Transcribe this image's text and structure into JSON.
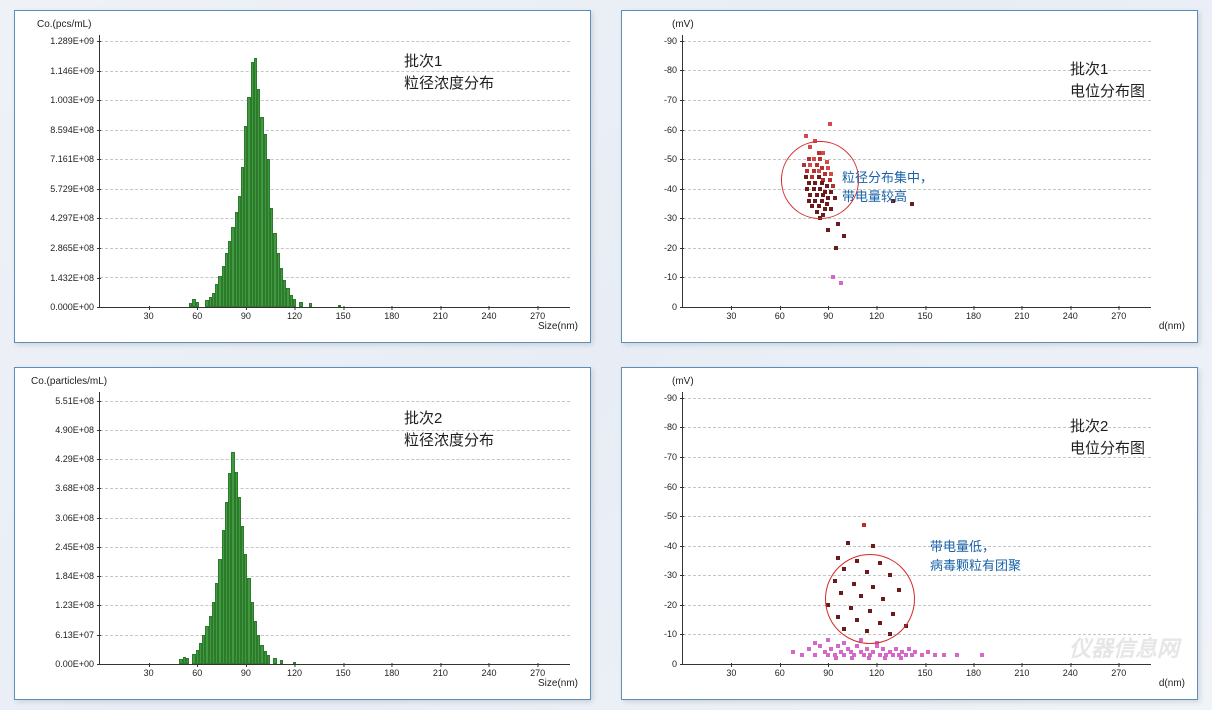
{
  "layout": {
    "panel_border_color": "#5a8fbd",
    "bg_gradient": [
      "#eef2f7",
      "#e8edf5",
      "#f0f3f8"
    ]
  },
  "chart_tl": {
    "type": "bar",
    "y_axis_label": "Co.(pcs/mL)",
    "x_axis_label": "Size(nm)",
    "title_line1": "批次1",
    "title_line2": "粒径浓度分布",
    "title_fontsize": 15,
    "bar_color": "#3f9a3f",
    "bar_border": "#2d7a2d",
    "grid_color": "#c5c5c5",
    "axis_color": "#333333",
    "xlim": [
      0,
      290
    ],
    "ylim": [
      0,
      1320000000.0
    ],
    "xticks": [
      30,
      60,
      90,
      120,
      150,
      180,
      210,
      240,
      270
    ],
    "yticks": [
      {
        "v": 0,
        "l": "0.000E+00"
      },
      {
        "v": 143200000.0,
        "l": "1.432E+08"
      },
      {
        "v": 286500000.0,
        "l": "2.865E+08"
      },
      {
        "v": 429700000.0,
        "l": "4.297E+08"
      },
      {
        "v": 572900000.0,
        "l": "5.729E+08"
      },
      {
        "v": 716100000.0,
        "l": "7.161E+08"
      },
      {
        "v": 859400000.0,
        "l": "8.594E+08"
      },
      {
        "v": 1003000000.0,
        "l": "1.003E+09"
      },
      {
        "v": 1146000000.0,
        "l": "1.146E+09"
      },
      {
        "v": 1289000000.0,
        "l": "1.289E+09"
      }
    ],
    "bar_width_nm": 2.0,
    "bars": [
      {
        "x": 56,
        "y": 20000000.0
      },
      {
        "x": 58,
        "y": 40000000.0
      },
      {
        "x": 60,
        "y": 25000000.0
      },
      {
        "x": 66,
        "y": 35000000.0
      },
      {
        "x": 68,
        "y": 50000000.0
      },
      {
        "x": 70,
        "y": 70000000.0
      },
      {
        "x": 72,
        "y": 110000000.0
      },
      {
        "x": 74,
        "y": 150000000.0
      },
      {
        "x": 76,
        "y": 200000000.0
      },
      {
        "x": 78,
        "y": 260000000.0
      },
      {
        "x": 80,
        "y": 320000000.0
      },
      {
        "x": 82,
        "y": 390000000.0
      },
      {
        "x": 84,
        "y": 460000000.0
      },
      {
        "x": 86,
        "y": 540000000.0
      },
      {
        "x": 88,
        "y": 680000000.0
      },
      {
        "x": 90,
        "y": 880000000.0
      },
      {
        "x": 92,
        "y": 1020000000.0
      },
      {
        "x": 94,
        "y": 1190000000.0
      },
      {
        "x": 96,
        "y": 1210000000.0
      },
      {
        "x": 98,
        "y": 1060000000.0
      },
      {
        "x": 100,
        "y": 920000000.0
      },
      {
        "x": 102,
        "y": 840000000.0
      },
      {
        "x": 104,
        "y": 720000000.0
      },
      {
        "x": 106,
        "y": 480000000.0
      },
      {
        "x": 108,
        "y": 360000000.0
      },
      {
        "x": 110,
        "y": 260000000.0
      },
      {
        "x": 112,
        "y": 190000000.0
      },
      {
        "x": 114,
        "y": 130000000.0
      },
      {
        "x": 116,
        "y": 90000000.0
      },
      {
        "x": 118,
        "y": 60000000.0
      },
      {
        "x": 120,
        "y": 40000000.0
      },
      {
        "x": 124,
        "y": 25000000.0
      },
      {
        "x": 130,
        "y": 18000000.0
      },
      {
        "x": 148,
        "y": 12000000.0
      }
    ]
  },
  "chart_tr": {
    "type": "scatter",
    "y_axis_label": "(mV)",
    "x_axis_label": "d(nm)",
    "title_line1": "批次1",
    "title_line2": "电位分布图",
    "annot_line1": "粒径分布集中，",
    "annot_line2": "带电量较高",
    "annot_color": "#1862a8",
    "axis_color": "#333333",
    "grid_color": "#c5c5c5",
    "xlim": [
      0,
      290
    ],
    "ylim": [
      0,
      92
    ],
    "xticks": [
      30,
      60,
      90,
      120,
      150,
      180,
      210,
      240,
      270
    ],
    "yticks": [
      {
        "v": 0,
        "l": "0"
      },
      {
        "v": 10,
        "l": "-10"
      },
      {
        "v": 20,
        "l": "-20"
      },
      {
        "v": 30,
        "l": "-30"
      },
      {
        "v": 40,
        "l": "-40"
      },
      {
        "v": 50,
        "l": "-50"
      },
      {
        "v": 60,
        "l": "-60"
      },
      {
        "v": 70,
        "l": "-70"
      },
      {
        "v": 80,
        "l": "-80"
      },
      {
        "v": 90,
        "l": "-90"
      }
    ],
    "circle": {
      "cx_nm": 85,
      "cy_mv": 43,
      "r_nm": 24,
      "stroke": "#d62828"
    },
    "colors": {
      "dark": "#6b1b1b",
      "mid": "#b73030",
      "light": "#d24a4a",
      "pink": "#d567c8"
    },
    "points": [
      {
        "x": 76,
        "y": 58,
        "c": "light"
      },
      {
        "x": 82,
        "y": 56,
        "c": "light"
      },
      {
        "x": 79,
        "y": 54,
        "c": "light"
      },
      {
        "x": 84,
        "y": 52,
        "c": "mid"
      },
      {
        "x": 87,
        "y": 52,
        "c": "light"
      },
      {
        "x": 78,
        "y": 50,
        "c": "mid"
      },
      {
        "x": 81,
        "y": 50,
        "c": "light"
      },
      {
        "x": 85,
        "y": 50,
        "c": "mid"
      },
      {
        "x": 89,
        "y": 49,
        "c": "light"
      },
      {
        "x": 75,
        "y": 48,
        "c": "mid"
      },
      {
        "x": 79,
        "y": 48,
        "c": "light"
      },
      {
        "x": 83,
        "y": 48,
        "c": "mid"
      },
      {
        "x": 86,
        "y": 47,
        "c": "mid"
      },
      {
        "x": 90,
        "y": 47,
        "c": "light"
      },
      {
        "x": 77,
        "y": 46,
        "c": "mid"
      },
      {
        "x": 81,
        "y": 46,
        "c": "mid"
      },
      {
        "x": 84,
        "y": 46,
        "c": "light"
      },
      {
        "x": 88,
        "y": 45,
        "c": "mid"
      },
      {
        "x": 92,
        "y": 45,
        "c": "light"
      },
      {
        "x": 76,
        "y": 44,
        "c": "dark"
      },
      {
        "x": 80,
        "y": 44,
        "c": "mid"
      },
      {
        "x": 84,
        "y": 44,
        "c": "dark"
      },
      {
        "x": 87,
        "y": 43,
        "c": "mid"
      },
      {
        "x": 91,
        "y": 43,
        "c": "mid"
      },
      {
        "x": 78,
        "y": 42,
        "c": "dark"
      },
      {
        "x": 82,
        "y": 42,
        "c": "dark"
      },
      {
        "x": 86,
        "y": 42,
        "c": "dark"
      },
      {
        "x": 89,
        "y": 41,
        "c": "dark"
      },
      {
        "x": 93,
        "y": 41,
        "c": "mid"
      },
      {
        "x": 77,
        "y": 40,
        "c": "dark"
      },
      {
        "x": 81,
        "y": 40,
        "c": "dark"
      },
      {
        "x": 85,
        "y": 40,
        "c": "dark"
      },
      {
        "x": 88,
        "y": 39,
        "c": "dark"
      },
      {
        "x": 92,
        "y": 39,
        "c": "dark"
      },
      {
        "x": 79,
        "y": 38,
        "c": "dark"
      },
      {
        "x": 83,
        "y": 38,
        "c": "dark"
      },
      {
        "x": 87,
        "y": 38,
        "c": "dark"
      },
      {
        "x": 90,
        "y": 37,
        "c": "dark"
      },
      {
        "x": 94,
        "y": 37,
        "c": "dark"
      },
      {
        "x": 78,
        "y": 36,
        "c": "dark"
      },
      {
        "x": 82,
        "y": 36,
        "c": "dark"
      },
      {
        "x": 86,
        "y": 36,
        "c": "dark"
      },
      {
        "x": 89,
        "y": 35,
        "c": "dark"
      },
      {
        "x": 80,
        "y": 34,
        "c": "dark"
      },
      {
        "x": 84,
        "y": 34,
        "c": "dark"
      },
      {
        "x": 88,
        "y": 33,
        "c": "dark"
      },
      {
        "x": 92,
        "y": 33,
        "c": "dark"
      },
      {
        "x": 83,
        "y": 32,
        "c": "dark"
      },
      {
        "x": 87,
        "y": 31,
        "c": "dark"
      },
      {
        "x": 85,
        "y": 30,
        "c": "dark"
      },
      {
        "x": 96,
        "y": 28,
        "c": "dark"
      },
      {
        "x": 90,
        "y": 26,
        "c": "dark"
      },
      {
        "x": 100,
        "y": 24,
        "c": "dark"
      },
      {
        "x": 95,
        "y": 20,
        "c": "dark"
      },
      {
        "x": 130,
        "y": 36,
        "c": "dark"
      },
      {
        "x": 142,
        "y": 35,
        "c": "dark"
      },
      {
        "x": 93,
        "y": 10,
        "c": "pink"
      },
      {
        "x": 98,
        "y": 8,
        "c": "pink"
      },
      {
        "x": 91,
        "y": 62,
        "c": "light"
      }
    ]
  },
  "chart_bl": {
    "type": "bar",
    "y_axis_label": "Co.(particles/mL)",
    "x_axis_label": "Size(nm)",
    "title_line1": "批次2",
    "title_line2": "粒径浓度分布",
    "bar_color": "#3f9a3f",
    "bar_border": "#2d7a2d",
    "grid_color": "#c5c5c5",
    "axis_color": "#333333",
    "xlim": [
      0,
      290
    ],
    "ylim": [
      0,
      570000000.0
    ],
    "xticks": [
      30,
      60,
      90,
      120,
      150,
      180,
      210,
      240,
      270
    ],
    "yticks": [
      {
        "v": 0,
        "l": "0.00E+00"
      },
      {
        "v": 61300000.0,
        "l": "6.13E+07"
      },
      {
        "v": 123000000.0,
        "l": "1.23E+08"
      },
      {
        "v": 184000000.0,
        "l": "1.84E+08"
      },
      {
        "v": 245000000.0,
        "l": "2.45E+08"
      },
      {
        "v": 306000000.0,
        "l": "3.06E+08"
      },
      {
        "v": 368000000.0,
        "l": "3.68E+08"
      },
      {
        "v": 429000000.0,
        "l": "4.29E+08"
      },
      {
        "v": 490000000.0,
        "l": "4.90E+08"
      },
      {
        "v": 551000000.0,
        "l": "5.51E+08"
      }
    ],
    "bar_width_nm": 2.0,
    "bars": [
      {
        "x": 50,
        "y": 10000000.0
      },
      {
        "x": 52,
        "y": 15000000.0
      },
      {
        "x": 54,
        "y": 12000000.0
      },
      {
        "x": 58,
        "y": 20000000.0
      },
      {
        "x": 60,
        "y": 30000000.0
      },
      {
        "x": 62,
        "y": 45000000.0
      },
      {
        "x": 64,
        "y": 60000000.0
      },
      {
        "x": 66,
        "y": 80000000.0
      },
      {
        "x": 68,
        "y": 100000000.0
      },
      {
        "x": 70,
        "y": 130000000.0
      },
      {
        "x": 72,
        "y": 170000000.0
      },
      {
        "x": 74,
        "y": 220000000.0
      },
      {
        "x": 76,
        "y": 280000000.0
      },
      {
        "x": 78,
        "y": 340000000.0
      },
      {
        "x": 80,
        "y": 400000000.0
      },
      {
        "x": 82,
        "y": 445000000.0
      },
      {
        "x": 84,
        "y": 402000000.0
      },
      {
        "x": 86,
        "y": 350000000.0
      },
      {
        "x": 88,
        "y": 290000000.0
      },
      {
        "x": 90,
        "y": 230000000.0
      },
      {
        "x": 92,
        "y": 180000000.0
      },
      {
        "x": 94,
        "y": 130000000.0
      },
      {
        "x": 96,
        "y": 90000000.0
      },
      {
        "x": 98,
        "y": 60000000.0
      },
      {
        "x": 100,
        "y": 40000000.0
      },
      {
        "x": 102,
        "y": 28000000.0
      },
      {
        "x": 104,
        "y": 18000000.0
      },
      {
        "x": 108,
        "y": 12000000.0
      },
      {
        "x": 112,
        "y": 8000000.0
      },
      {
        "x": 120,
        "y": 5000000.0
      }
    ]
  },
  "chart_br": {
    "type": "scatter",
    "y_axis_label": "(mV)",
    "x_axis_label": "d(nm)",
    "title_line1": "批次2",
    "title_line2": "电位分布图",
    "annot_line1": "带电量低，",
    "annot_line2": "病毒颗粒有团聚",
    "annot_color": "#1862a8",
    "axis_color": "#333333",
    "grid_color": "#c5c5c5",
    "xlim": [
      0,
      290
    ],
    "ylim": [
      0,
      92
    ],
    "xticks": [
      30,
      60,
      90,
      120,
      150,
      180,
      210,
      240,
      270
    ],
    "yticks": [
      {
        "v": 0,
        "l": "0"
      },
      {
        "v": 10,
        "l": "-10"
      },
      {
        "v": 20,
        "l": "-20"
      },
      {
        "v": 30,
        "l": "-30"
      },
      {
        "v": 40,
        "l": "-40"
      },
      {
        "v": 50,
        "l": "-50"
      },
      {
        "v": 60,
        "l": "-60"
      },
      {
        "v": 70,
        "l": "-70"
      },
      {
        "v": 80,
        "l": "-80"
      },
      {
        "v": 90,
        "l": "-90"
      }
    ],
    "circle": {
      "cx_nm": 116,
      "cy_mv": 22,
      "r_nm": 28,
      "stroke": "#d62828"
    },
    "colors": {
      "dark": "#6b1b1b",
      "mid": "#b73030",
      "light": "#d24a4a",
      "pink": "#d567c8"
    },
    "watermark": "仪器信息网",
    "points": [
      {
        "x": 112,
        "y": 47,
        "c": "mid"
      },
      {
        "x": 102,
        "y": 41,
        "c": "dark"
      },
      {
        "x": 118,
        "y": 40,
        "c": "dark"
      },
      {
        "x": 96,
        "y": 36,
        "c": "dark"
      },
      {
        "x": 108,
        "y": 35,
        "c": "dark"
      },
      {
        "x": 122,
        "y": 34,
        "c": "dark"
      },
      {
        "x": 100,
        "y": 32,
        "c": "dark"
      },
      {
        "x": 114,
        "y": 31,
        "c": "dark"
      },
      {
        "x": 128,
        "y": 30,
        "c": "dark"
      },
      {
        "x": 94,
        "y": 28,
        "c": "dark"
      },
      {
        "x": 106,
        "y": 27,
        "c": "dark"
      },
      {
        "x": 118,
        "y": 26,
        "c": "dark"
      },
      {
        "x": 134,
        "y": 25,
        "c": "dark"
      },
      {
        "x": 98,
        "y": 24,
        "c": "dark"
      },
      {
        "x": 110,
        "y": 23,
        "c": "dark"
      },
      {
        "x": 124,
        "y": 22,
        "c": "dark"
      },
      {
        "x": 90,
        "y": 20,
        "c": "dark"
      },
      {
        "x": 104,
        "y": 19,
        "c": "dark"
      },
      {
        "x": 116,
        "y": 18,
        "c": "dark"
      },
      {
        "x": 130,
        "y": 17,
        "c": "dark"
      },
      {
        "x": 96,
        "y": 16,
        "c": "dark"
      },
      {
        "x": 108,
        "y": 15,
        "c": "dark"
      },
      {
        "x": 122,
        "y": 14,
        "c": "dark"
      },
      {
        "x": 138,
        "y": 13,
        "c": "dark"
      },
      {
        "x": 100,
        "y": 12,
        "c": "dark"
      },
      {
        "x": 114,
        "y": 11,
        "c": "dark"
      },
      {
        "x": 128,
        "y": 10,
        "c": "dark"
      },
      {
        "x": 68,
        "y": 4,
        "c": "pink"
      },
      {
        "x": 74,
        "y": 3,
        "c": "pink"
      },
      {
        "x": 78,
        "y": 5,
        "c": "pink"
      },
      {
        "x": 82,
        "y": 3,
        "c": "pink"
      },
      {
        "x": 85,
        "y": 6,
        "c": "pink"
      },
      {
        "x": 88,
        "y": 4,
        "c": "pink"
      },
      {
        "x": 90,
        "y": 3,
        "c": "pink"
      },
      {
        "x": 92,
        "y": 5,
        "c": "pink"
      },
      {
        "x": 94,
        "y": 3,
        "c": "pink"
      },
      {
        "x": 96,
        "y": 6,
        "c": "pink"
      },
      {
        "x": 98,
        "y": 4,
        "c": "pink"
      },
      {
        "x": 100,
        "y": 3,
        "c": "pink"
      },
      {
        "x": 102,
        "y": 5,
        "c": "pink"
      },
      {
        "x": 104,
        "y": 4,
        "c": "pink"
      },
      {
        "x": 106,
        "y": 3,
        "c": "pink"
      },
      {
        "x": 108,
        "y": 6,
        "c": "pink"
      },
      {
        "x": 110,
        "y": 4,
        "c": "pink"
      },
      {
        "x": 112,
        "y": 3,
        "c": "pink"
      },
      {
        "x": 114,
        "y": 5,
        "c": "pink"
      },
      {
        "x": 116,
        "y": 3,
        "c": "pink"
      },
      {
        "x": 118,
        "y": 4,
        "c": "pink"
      },
      {
        "x": 120,
        "y": 6,
        "c": "pink"
      },
      {
        "x": 122,
        "y": 3,
        "c": "pink"
      },
      {
        "x": 124,
        "y": 5,
        "c": "pink"
      },
      {
        "x": 126,
        "y": 3,
        "c": "pink"
      },
      {
        "x": 128,
        "y": 4,
        "c": "pink"
      },
      {
        "x": 130,
        "y": 3,
        "c": "pink"
      },
      {
        "x": 132,
        "y": 5,
        "c": "pink"
      },
      {
        "x": 134,
        "y": 3,
        "c": "pink"
      },
      {
        "x": 136,
        "y": 4,
        "c": "pink"
      },
      {
        "x": 138,
        "y": 3,
        "c": "pink"
      },
      {
        "x": 140,
        "y": 5,
        "c": "pink"
      },
      {
        "x": 142,
        "y": 3,
        "c": "pink"
      },
      {
        "x": 144,
        "y": 4,
        "c": "pink"
      },
      {
        "x": 148,
        "y": 3,
        "c": "pink"
      },
      {
        "x": 152,
        "y": 4,
        "c": "pink"
      },
      {
        "x": 156,
        "y": 3,
        "c": "pink"
      },
      {
        "x": 162,
        "y": 3,
        "c": "pink"
      },
      {
        "x": 170,
        "y": 3,
        "c": "pink"
      },
      {
        "x": 185,
        "y": 3,
        "c": "pink"
      },
      {
        "x": 82,
        "y": 7,
        "c": "pink"
      },
      {
        "x": 90,
        "y": 8,
        "c": "pink"
      },
      {
        "x": 100,
        "y": 7,
        "c": "pink"
      },
      {
        "x": 110,
        "y": 8,
        "c": "pink"
      },
      {
        "x": 120,
        "y": 7,
        "c": "pink"
      },
      {
        "x": 95,
        "y": 2,
        "c": "pink"
      },
      {
        "x": 105,
        "y": 2,
        "c": "pink"
      },
      {
        "x": 115,
        "y": 2,
        "c": "pink"
      },
      {
        "x": 125,
        "y": 2,
        "c": "pink"
      },
      {
        "x": 135,
        "y": 2,
        "c": "pink"
      }
    ]
  }
}
